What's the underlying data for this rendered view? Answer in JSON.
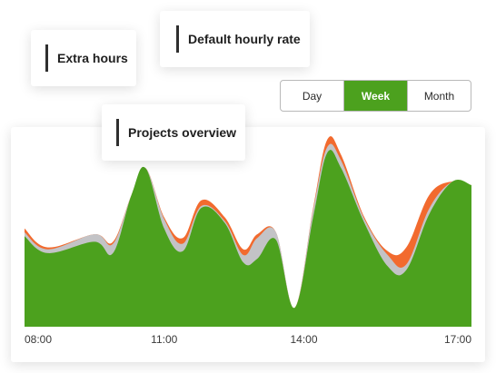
{
  "cards": {
    "extra_hours": "Extra hours",
    "default_hourly_rate": "Default hourly rate",
    "projects_overview": "Projects overview"
  },
  "range_selector": {
    "options": [
      "Day",
      "Week",
      "Month"
    ],
    "selected": "Week"
  },
  "colors": {
    "primary_green": "#4ca11e",
    "overtime_orange": "#f26a2e",
    "gray_series": "#c3c3c6"
  },
  "chart_data": {
    "type": "area",
    "x_ticks": [
      "08:00",
      "11:00",
      "14:00",
      "17:00"
    ],
    "x_range": [
      8,
      17.6
    ],
    "y_range": [
      0,
      100
    ],
    "series": [
      {
        "color": "#f26a2e",
        "x": [
          8,
          8.5,
          9.5,
          9.9,
          10.3,
          10.6,
          11,
          11.4,
          11.8,
          12.3,
          12.7,
          13,
          13.4,
          13.8,
          14.2,
          14.5,
          14.8,
          15.3,
          15.8,
          16.2,
          16.7,
          17.2,
          17.6
        ],
        "y": [
          52,
          42,
          49,
          45,
          70,
          84,
          58,
          47,
          67,
          58,
          41,
          49,
          50,
          10,
          63,
          99,
          91,
          58,
          40,
          42,
          70,
          77,
          75
        ]
      },
      {
        "color": "#c3c3c6",
        "x": [
          8,
          8.5,
          9.5,
          9.9,
          10.3,
          10.6,
          11,
          11.4,
          11.8,
          12.3,
          12.7,
          13,
          13.4,
          13.8,
          14.2,
          14.5,
          14.8,
          15.3,
          15.8,
          16.2,
          16.7,
          17.2,
          17.6
        ],
        "y": [
          50,
          41,
          49,
          44,
          70,
          84,
          57,
          44,
          64,
          56,
          38,
          47,
          50,
          10,
          62,
          95,
          88,
          57,
          38,
          33,
          63,
          77,
          75
        ]
      },
      {
        "color": "#4ca11e",
        "x": [
          8,
          8.5,
          9.5,
          9.9,
          10.3,
          10.6,
          11,
          11.4,
          11.8,
          12.3,
          12.7,
          13,
          13.4,
          13.8,
          14.2,
          14.5,
          14.8,
          15.3,
          15.8,
          16.2,
          16.7,
          17.2,
          17.6
        ],
        "y": [
          48,
          39,
          45,
          39,
          70,
          84,
          52,
          40,
          63,
          55,
          34,
          36,
          46,
          10,
          58,
          92,
          84,
          55,
          32,
          30,
          60,
          77,
          75
        ]
      }
    ]
  }
}
